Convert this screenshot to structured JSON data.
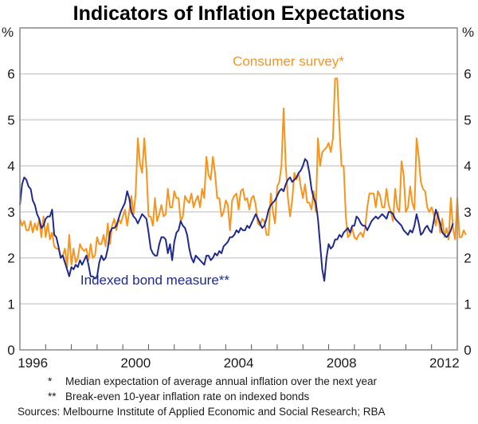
{
  "chart_data": {
    "type": "line",
    "title": "Indicators of Inflation Expectations",
    "ylabel_left": "%",
    "ylabel_right": "%",
    "ylim": [
      0,
      7
    ],
    "yticks": [
      0,
      1,
      2,
      3,
      4,
      5,
      6
    ],
    "xlim": [
      1996,
      2013
    ],
    "xtick_labels": [
      "1996",
      "2000",
      "2004",
      "2008",
      "2012"
    ],
    "xtick_label_years": [
      1996,
      2000,
      2004,
      2008,
      2012
    ],
    "grid": true,
    "colors": {
      "consumer": "#f7941d",
      "bond": "#1f2a8c",
      "grid": "#d0d0d0",
      "axis": "#888888"
    },
    "series": [
      {
        "name": "Consumer survey*",
        "key": "consumer",
        "start": 1996.0,
        "step": 0.0833333,
        "values": [
          2.85,
          2.7,
          2.8,
          2.6,
          2.6,
          2.8,
          2.55,
          2.75,
          2.6,
          2.85,
          2.45,
          2.9,
          2.45,
          2.75,
          2.4,
          2.55,
          2.25,
          2.2,
          2.2,
          2.05,
          2.05,
          2.2,
          1.8,
          2.5,
          1.85,
          2.2,
          1.9,
          2.0,
          2.3,
          2.2,
          2.15,
          2.2,
          1.95,
          2.3,
          2.0,
          2.05,
          2.45,
          2.3,
          2.3,
          2.5,
          2.25,
          2.75,
          2.3,
          2.7,
          2.85,
          2.6,
          2.85,
          2.75,
          2.9,
          3.05,
          2.7,
          3.0,
          3.35,
          2.95,
          3.4,
          4.6,
          4.05,
          3.85,
          4.6,
          3.95,
          2.9,
          2.9,
          2.7,
          3.3,
          2.8,
          2.95,
          3.15,
          2.9,
          2.95,
          3.5,
          3.1,
          3.1,
          3.45,
          3.3,
          3.3,
          2.8,
          2.9,
          3.35,
          3.25,
          3.2,
          3.4,
          3.1,
          3.25,
          3.35,
          3.1,
          3.5,
          3.3,
          4.2,
          3.8,
          3.7,
          4.2,
          3.85,
          3.3,
          3.3,
          2.9,
          3.0,
          3.25,
          3.15,
          2.6,
          3.25,
          3.35,
          3.4,
          3.05,
          3.45,
          3.5,
          3.25,
          3.3,
          3.05,
          3.3,
          3.35,
          3.15,
          2.75,
          2.7,
          2.85,
          2.8,
          2.5,
          2.5,
          3.4,
          3.0,
          2.75,
          3.55,
          3.65,
          4.0,
          5.25,
          4.0,
          3.3,
          2.9,
          3.25,
          3.85,
          3.7,
          3.85,
          3.55,
          3.3,
          3.6,
          3.2,
          3.2,
          3.05,
          3.45,
          3.0,
          4.6,
          4.0,
          4.3,
          4.35,
          4.4,
          4.5,
          4.3,
          4.6,
          5.9,
          5.9,
          4.85,
          4.0,
          4.0,
          2.9,
          2.45,
          2.5,
          2.65,
          2.45,
          2.4,
          2.5,
          2.55,
          2.45,
          2.65,
          3.1,
          3.4,
          3.4,
          3.4,
          3.1,
          3.45,
          3.35,
          3.1,
          3.1,
          3.5,
          3.15,
          3.0,
          2.8,
          3.5,
          3.1,
          3.0,
          4.1,
          3.8,
          3.0,
          3.1,
          3.55,
          3.2,
          3.05,
          4.6,
          4.2,
          3.65,
          3.5,
          3.45,
          3.1,
          3.0,
          3.1,
          2.95,
          2.7,
          3.0,
          2.55,
          2.85,
          2.45,
          2.65,
          2.4,
          3.3,
          2.65,
          2.4,
          3.3,
          2.45,
          2.45,
          2.6,
          2.5
        ]
      },
      {
        "name": "Indexed bond measure**",
        "key": "bond",
        "start": 1996.0,
        "step": 0.0833333,
        "values": [
          3.15,
          3.6,
          3.75,
          3.7,
          3.55,
          3.5,
          3.25,
          3.15,
          2.95,
          2.85,
          2.65,
          2.7,
          2.85,
          2.9,
          2.9,
          3.05,
          2.5,
          2.45,
          2.25,
          2.0,
          2.05,
          1.9,
          1.75,
          1.6,
          1.8,
          1.75,
          1.85,
          1.8,
          1.95,
          1.85,
          1.95,
          2.05,
          1.85,
          1.6,
          1.6,
          1.55,
          1.6,
          1.9,
          2.05,
          1.95,
          2.0,
          2.2,
          2.55,
          2.65,
          2.65,
          2.7,
          2.85,
          3.0,
          3.1,
          3.2,
          3.45,
          3.3,
          3.0,
          2.9,
          2.85,
          2.75,
          2.85,
          2.95,
          2.9,
          2.85,
          2.55,
          2.2,
          2.1,
          2.05,
          2.05,
          2.3,
          2.45,
          2.45,
          2.4,
          2.1,
          2.3,
          1.95,
          2.35,
          2.55,
          2.6,
          2.8,
          2.7,
          2.65,
          2.5,
          2.2,
          2.0,
          1.9,
          2.05,
          2.0,
          1.95,
          1.9,
          1.85,
          2.05,
          2.05,
          1.95,
          2.0,
          2.1,
          2.05,
          2.15,
          2.1,
          2.25,
          2.3,
          2.35,
          2.45,
          2.45,
          2.5,
          2.6,
          2.55,
          2.65,
          2.6,
          2.6,
          2.7,
          2.65,
          2.75,
          2.85,
          2.95,
          2.85,
          2.75,
          2.65,
          2.7,
          2.85,
          3.05,
          3.15,
          3.2,
          3.25,
          3.35,
          3.45,
          3.5,
          3.45,
          3.6,
          3.7,
          3.75,
          3.65,
          3.7,
          3.75,
          3.85,
          3.9,
          4.0,
          4.15,
          4.1,
          3.85,
          3.5,
          3.3,
          3.2,
          2.85,
          2.3,
          1.75,
          1.5,
          2.0,
          2.3,
          2.2,
          2.25,
          2.4,
          2.4,
          2.5,
          2.45,
          2.55,
          2.6,
          2.65,
          2.55,
          2.7,
          2.7,
          2.9,
          2.85,
          2.75,
          2.7,
          2.7,
          2.6,
          2.7,
          2.8,
          2.85,
          2.9,
          2.85,
          2.9,
          2.95,
          2.9,
          2.85,
          3.0,
          3.0,
          2.95,
          2.85,
          2.8,
          2.75,
          2.7,
          2.6,
          2.55,
          2.5,
          2.6,
          2.55,
          2.7,
          2.95,
          2.75,
          2.5,
          2.55,
          2.65,
          2.7,
          2.6,
          2.55,
          2.8,
          3.05,
          2.9,
          2.75,
          2.55,
          2.5,
          2.45,
          2.5,
          2.6,
          2.75
        ]
      }
    ],
    "annotations": [
      {
        "text": "Consumer survey*",
        "series": "consumer",
        "x": 2008.6,
        "y": 6.18,
        "anchor": "end"
      },
      {
        "text": "Indexed bond measure**",
        "series": "bond",
        "x": 1998.35,
        "y": 1.42,
        "anchor": "start"
      }
    ]
  },
  "notes": [
    {
      "mark": "*",
      "text": "Median expectation of average annual inflation over the next year"
    },
    {
      "mark": "**",
      "text": "Break-even 10-year inflation rate on indexed bonds"
    }
  ],
  "sources": "Sources: Melbourne Institute of Applied Economic and Social Research; RBA"
}
